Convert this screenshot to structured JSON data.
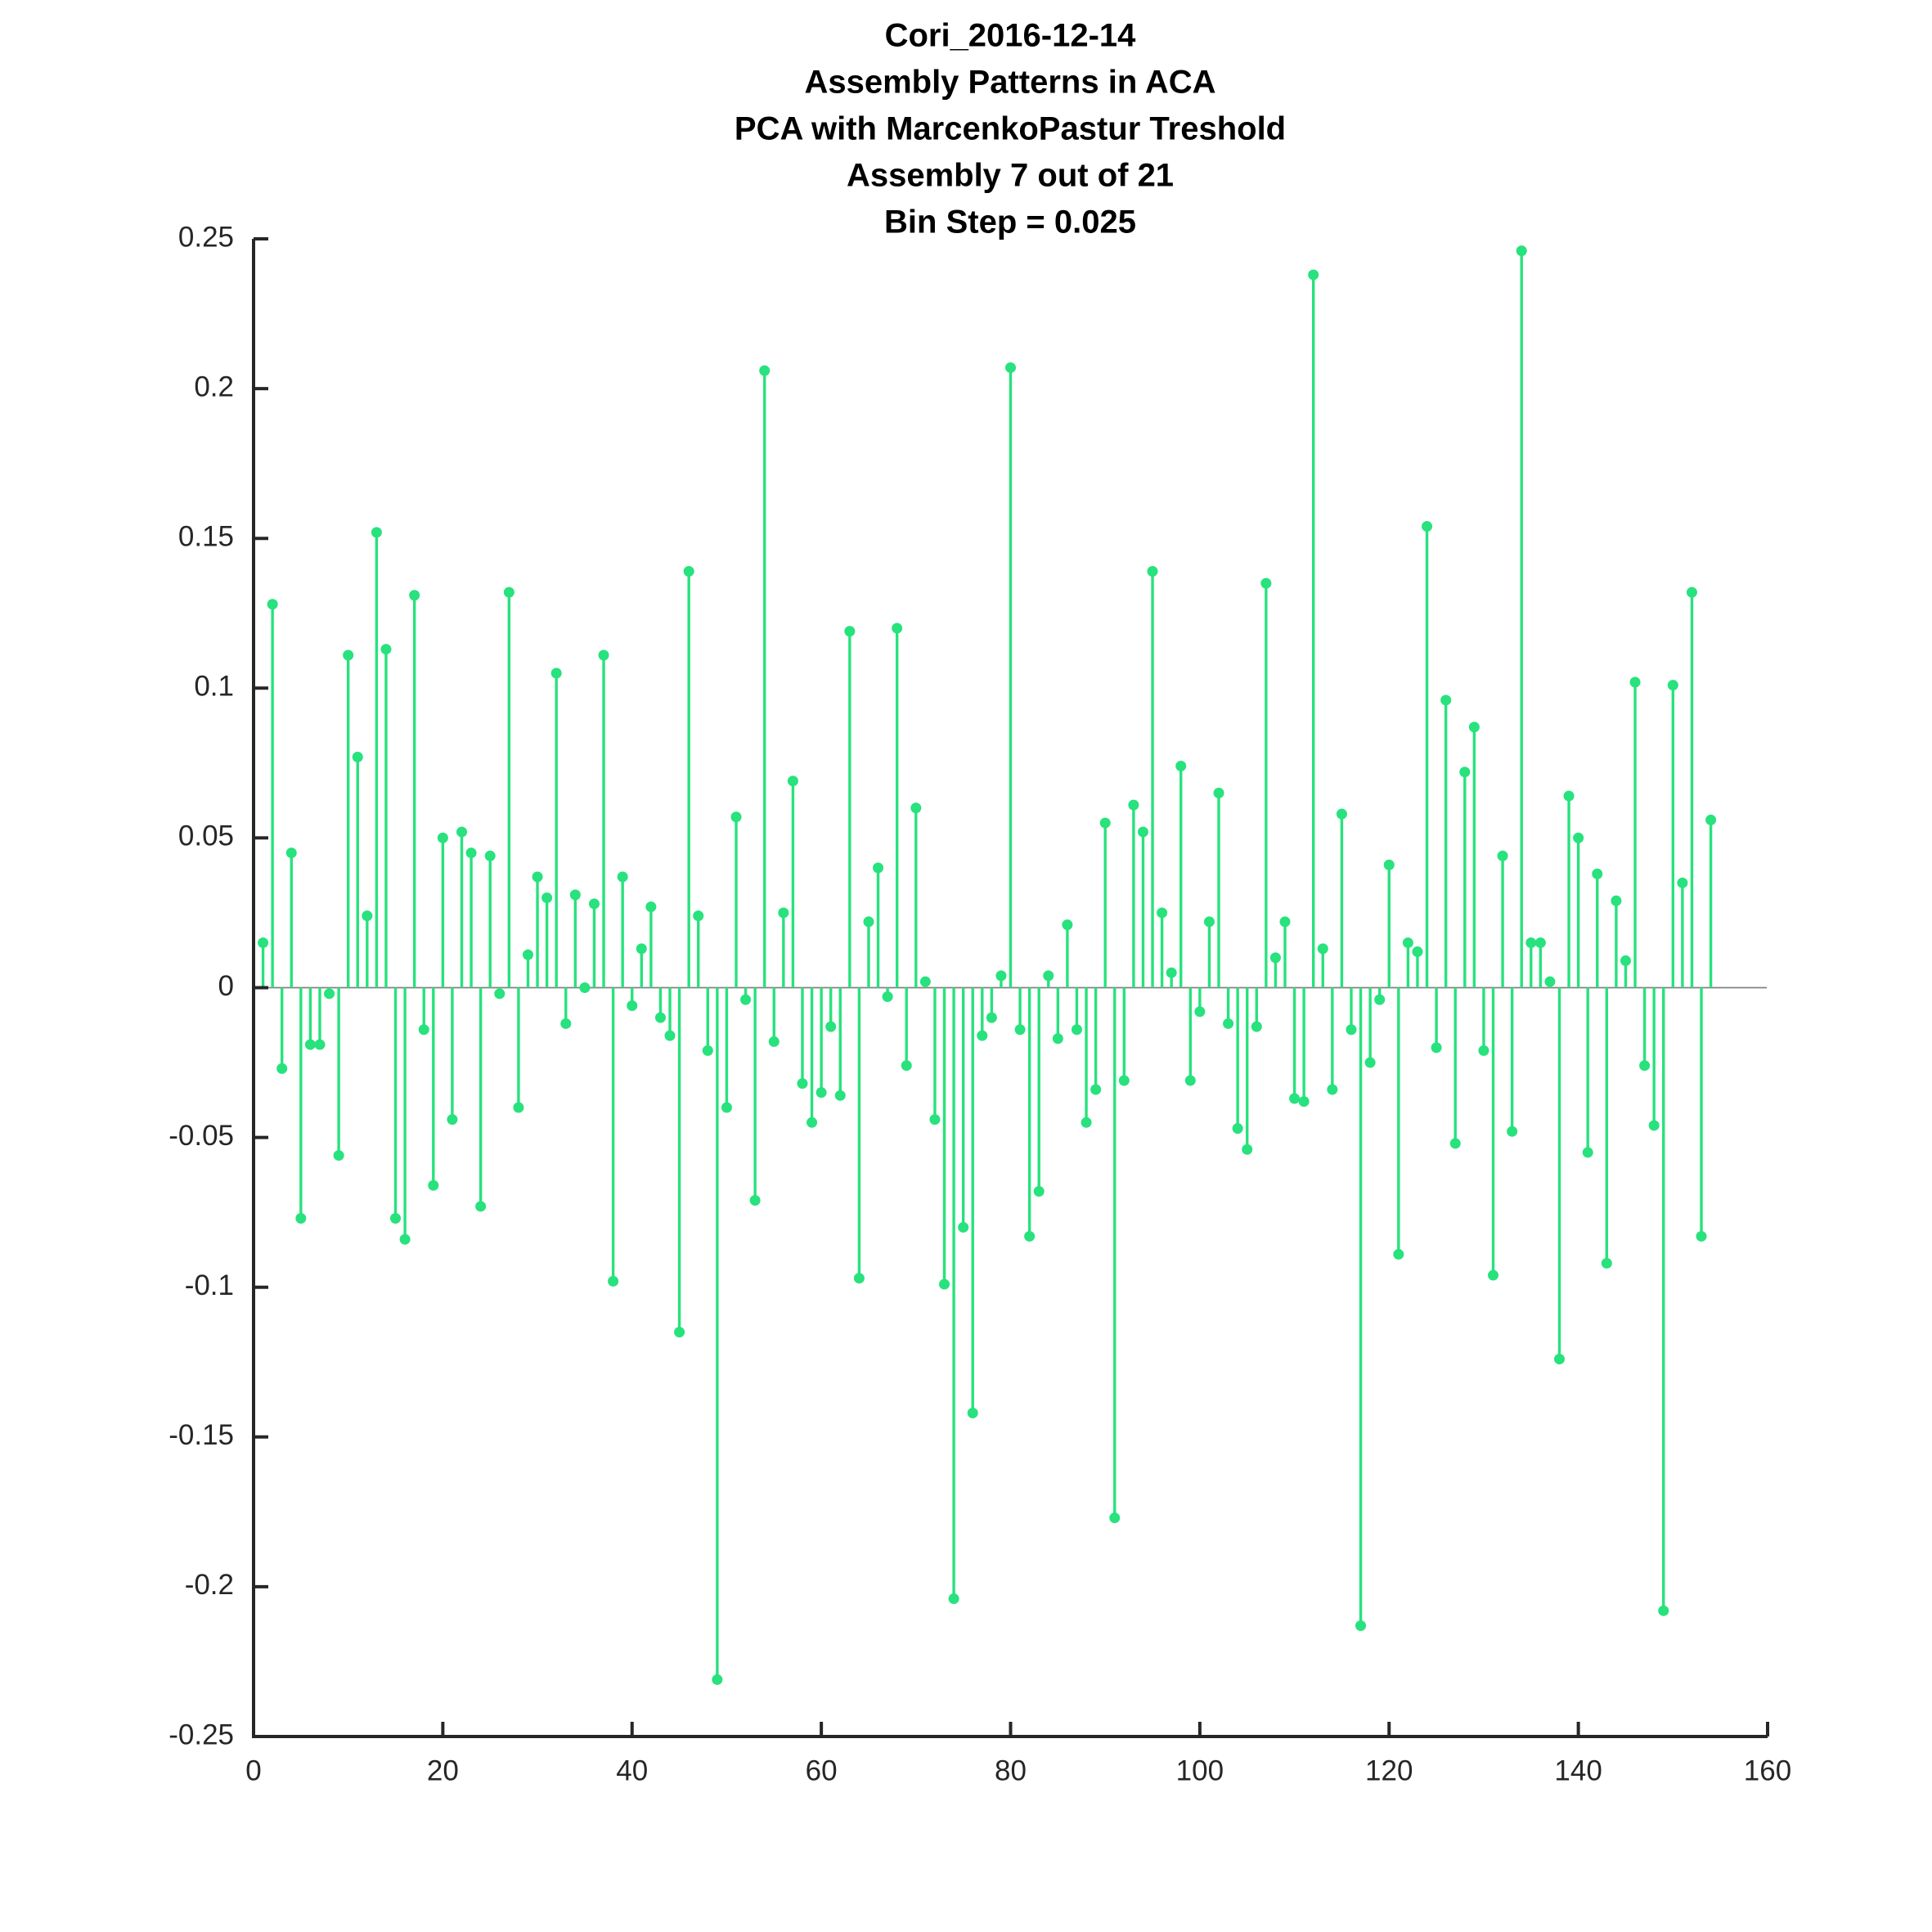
{
  "chart_data": {
    "type": "stem",
    "title": [
      "Cori_2016-12-14",
      "Assembly Patterns in ACA",
      "PCA with MarcenkoPastur Treshold",
      "Assembly 7 out of 21",
      "Bin Step = 0.025"
    ],
    "xlabel": "",
    "ylabel": "",
    "xlim": [
      0,
      160
    ],
    "ylim": [
      -0.25,
      0.25
    ],
    "xticks": [
      0,
      20,
      40,
      60,
      80,
      100,
      120,
      140,
      160
    ],
    "xtick_labels": [
      "0",
      "20",
      "40",
      "60",
      "80",
      "100",
      "120",
      "140",
      "160"
    ],
    "yticks": [
      0.25,
      0.2,
      0.15,
      0.1,
      0.05,
      0,
      -0.05,
      -0.1,
      -0.15,
      -0.2,
      -0.25
    ],
    "ytick_labels": [
      "0.25",
      "0.2",
      "0.15",
      "0.1",
      "0.05",
      "0",
      "-0.05",
      "-0.1",
      "-0.15",
      "-0.2",
      "-0.25"
    ],
    "grid": false,
    "color": "#27e27d",
    "baseline_color": "#808080",
    "axis_color": "#262626",
    "x_start": 1,
    "values": [
      0.015,
      0.128,
      -0.027,
      0.045,
      -0.077,
      -0.019,
      -0.019,
      -0.002,
      -0.056,
      0.111,
      0.077,
      0.024,
      0.152,
      0.113,
      -0.077,
      -0.084,
      0.131,
      -0.014,
      -0.066,
      0.05,
      -0.044,
      0.052,
      0.045,
      -0.073,
      0.044,
      -0.002,
      0.132,
      -0.04,
      0.011,
      0.037,
      0.03,
      0.105,
      -0.012,
      0.031,
      0.0,
      0.028,
      0.111,
      -0.098,
      0.037,
      -0.006,
      0.013,
      0.027,
      -0.01,
      -0.016,
      -0.115,
      0.139,
      0.024,
      -0.021,
      -0.231,
      -0.04,
      0.057,
      -0.004,
      -0.071,
      0.206,
      -0.018,
      0.025,
      0.069,
      -0.032,
      -0.045,
      -0.035,
      -0.013,
      -0.036,
      0.119,
      -0.097,
      0.022,
      0.04,
      -0.003,
      0.12,
      -0.026,
      0.06,
      0.002,
      -0.044,
      -0.099,
      -0.204,
      -0.08,
      -0.142,
      -0.016,
      -0.01,
      0.004,
      0.207,
      -0.014,
      -0.083,
      -0.068,
      0.004,
      -0.017,
      0.021,
      -0.014,
      -0.045,
      -0.034,
      0.055,
      -0.177,
      -0.031,
      0.061,
      0.052,
      0.139,
      0.025,
      0.005,
      0.074,
      -0.031,
      -0.008,
      0.022,
      0.065,
      -0.012,
      -0.047,
      -0.054,
      -0.013,
      0.135,
      0.01,
      0.022,
      -0.037,
      -0.038,
      0.238,
      0.013,
      -0.034,
      0.058,
      -0.014,
      -0.213,
      -0.025,
      -0.004,
      0.041,
      -0.089,
      0.015,
      0.012,
      0.154,
      -0.02,
      0.096,
      -0.052,
      0.072,
      0.087,
      -0.021,
      -0.096,
      0.044,
      -0.048,
      0.246,
      0.015,
      0.015,
      0.002,
      -0.124,
      0.064,
      0.05,
      -0.055,
      0.038,
      -0.092,
      0.029,
      0.009,
      0.102,
      -0.026,
      -0.046,
      -0.208,
      0.101,
      0.035,
      0.132,
      -0.083,
      0.056
    ]
  }
}
